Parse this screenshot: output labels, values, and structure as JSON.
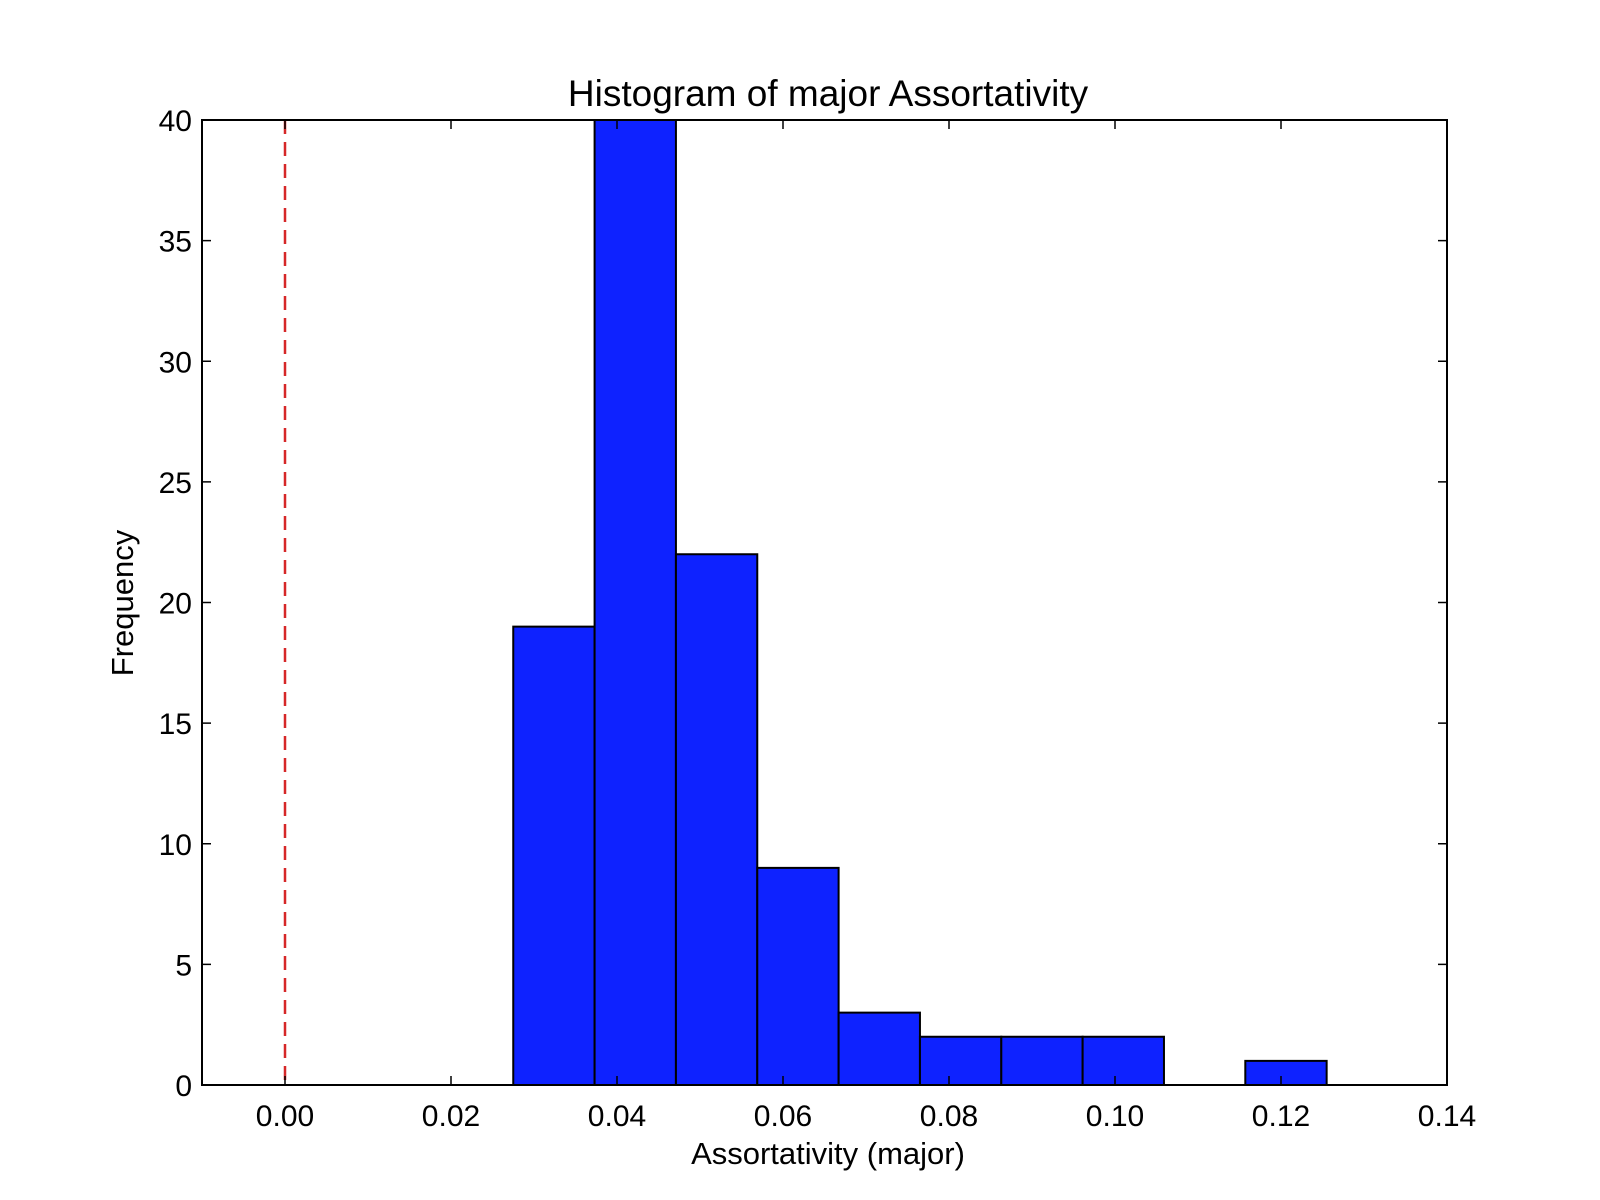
{
  "chart_data": {
    "type": "histogram",
    "title": "Histogram of major Assortativity",
    "xlabel": "Assortativity (major)",
    "ylabel": "Frequency",
    "xlim": [
      -0.01,
      0.14
    ],
    "ylim": [
      0,
      40
    ],
    "xticks": [
      0.0,
      0.02,
      0.04,
      0.06,
      0.08,
      0.1,
      0.12,
      0.14
    ],
    "xtick_labels": [
      "0.00",
      "0.02",
      "0.04",
      "0.06",
      "0.08",
      "0.10",
      "0.12",
      "0.14"
    ],
    "yticks": [
      0,
      5,
      10,
      15,
      20,
      25,
      30,
      35,
      40
    ],
    "ytick_labels": [
      "0",
      "5",
      "10",
      "15",
      "20",
      "25",
      "30",
      "35",
      "40"
    ],
    "bins": [
      0.0275,
      0.0373,
      0.0471,
      0.0569,
      0.0667,
      0.0765,
      0.0863,
      0.0961,
      0.1059,
      0.1157,
      0.1255
    ],
    "values": [
      19,
      40,
      22,
      9,
      3,
      2,
      2,
      2,
      0,
      1
    ],
    "bar_color": "#0e22ff",
    "edge_color": "#000000",
    "reference_line": {
      "x": 0.0,
      "color": "#d62728",
      "style": "dashed"
    },
    "grid": false
  }
}
